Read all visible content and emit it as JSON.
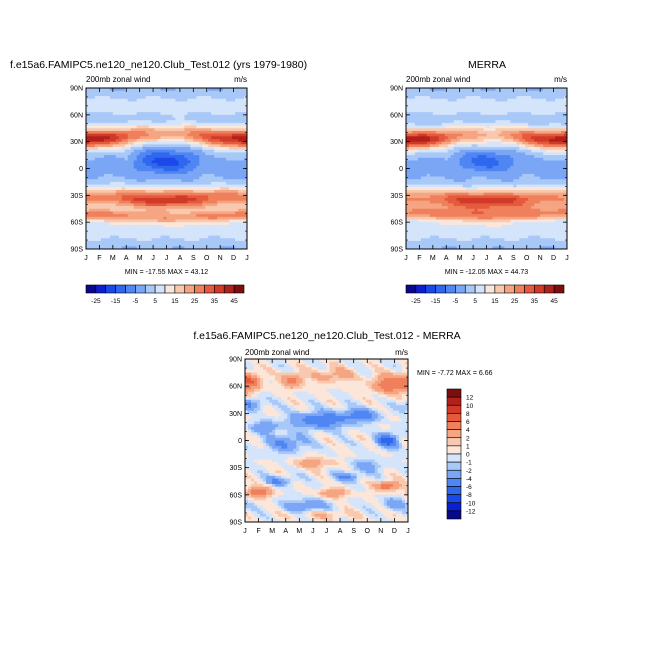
{
  "chart_data": [
    {
      "type": "heatmap",
      "title": "f.e15a6.FAMIPC5.ne120_ne120.Club_Test.012 (yrs 1979-1980)",
      "left_label": "200mb zonal wind",
      "right_label": "m/s",
      "x_ticks": [
        "J",
        "F",
        "M",
        "A",
        "M",
        "J",
        "J",
        "A",
        "S",
        "O",
        "N",
        "D",
        "J"
      ],
      "y_ticks": [
        "90N",
        "60N",
        "30N",
        "0",
        "30S",
        "60S",
        "90S"
      ],
      "ylim": [
        -90,
        90
      ],
      "stats": "MIN = -17.55 MAX =  43.12",
      "colorbar": {
        "orientation": "horizontal",
        "labels": [
          "-25",
          "-15",
          "-5",
          "5",
          "15",
          "25",
          "35",
          "45"
        ],
        "levels": [
          -25,
          -20,
          -15,
          -10,
          -5,
          0,
          5,
          10,
          15,
          20,
          25,
          30,
          35,
          40,
          45
        ],
        "colors": [
          "#08088a",
          "#0b1fd0",
          "#1a49e8",
          "#2f68ef",
          "#4f86f3",
          "#7aa6f5",
          "#a8c8f8",
          "#d4e4fb",
          "#fbe6d9",
          "#f8c9ae",
          "#f5a582",
          "#f0805c",
          "#e55a3c",
          "#d13a28",
          "#b2201a",
          "#7e0e0e"
        ]
      },
      "field": {
        "jets": [
          {
            "lat": 33,
            "peak_djf": 43,
            "peak_jja": 22,
            "width_deg": 11
          },
          {
            "lat": -32,
            "peak_djf": 26,
            "peak_jja": 38,
            "width_deg": 12
          },
          {
            "lat": -52,
            "peak_djf": 26,
            "peak_jja": 20,
            "width_deg": 7
          }
        ],
        "summer_easterly": {
          "lat": 8,
          "min": -17,
          "width_deg": 13
        }
      }
    },
    {
      "type": "heatmap",
      "title": "MERRA",
      "left_label": "200mb zonal wind",
      "right_label": "m/s",
      "x_ticks": [
        "J",
        "F",
        "M",
        "A",
        "M",
        "J",
        "J",
        "A",
        "S",
        "O",
        "N",
        "D",
        "J"
      ],
      "y_ticks": [
        "90N",
        "60N",
        "30N",
        "0",
        "30S",
        "60S",
        "90S"
      ],
      "ylim": [
        -90,
        90
      ],
      "stats": "MIN = -12.05 MAX =  44.73",
      "colorbar": {
        "orientation": "horizontal",
        "labels": [
          "-25",
          "-15",
          "-5",
          "5",
          "15",
          "25",
          "35",
          "45"
        ],
        "levels": [
          -25,
          -20,
          -15,
          -10,
          -5,
          0,
          5,
          10,
          15,
          20,
          25,
          30,
          35,
          40,
          45
        ],
        "colors": [
          "#08088a",
          "#0b1fd0",
          "#1a49e8",
          "#2f68ef",
          "#4f86f3",
          "#7aa6f5",
          "#a8c8f8",
          "#d4e4fb",
          "#fbe6d9",
          "#f8c9ae",
          "#f5a582",
          "#f0805c",
          "#e55a3c",
          "#d13a28",
          "#b2201a",
          "#7e0e0e"
        ]
      },
      "field": {
        "jets": [
          {
            "lat": 32,
            "peak_djf": 44,
            "peak_jja": 20,
            "width_deg": 11
          },
          {
            "lat": -33,
            "peak_djf": 24,
            "peak_jja": 38,
            "width_deg": 12
          },
          {
            "lat": -50,
            "peak_djf": 22,
            "peak_jja": 22,
            "width_deg": 8
          }
        ],
        "summer_easterly": {
          "lat": 8,
          "min": -12,
          "width_deg": 12
        }
      }
    },
    {
      "type": "heatmap",
      "title": "f.e15a6.FAMIPC5.ne120_ne120.Club_Test.012 - MERRA",
      "left_label": "200mb zonal wind",
      "right_label": "m/s",
      "x_ticks": [
        "J",
        "F",
        "M",
        "A",
        "M",
        "J",
        "J",
        "A",
        "S",
        "O",
        "N",
        "D",
        "J"
      ],
      "y_ticks": [
        "90N",
        "60N",
        "30N",
        "0",
        "30S",
        "60S",
        "90S"
      ],
      "ylim": [
        -90,
        90
      ],
      "stats": "MIN =  -7.72 MAX =   6.66",
      "colorbar": {
        "orientation": "vertical",
        "labels": [
          "12",
          "10",
          "8",
          "6",
          "4",
          "2",
          "1",
          "0",
          "-1",
          "-2",
          "-4",
          "-6",
          "-8",
          "-10",
          "-12"
        ],
        "levels": [
          -12,
          -10,
          -8,
          -6,
          -4,
          -2,
          -1,
          0,
          1,
          2,
          4,
          6,
          8,
          10,
          12
        ],
        "colors": [
          "#08088a",
          "#0b1fd0",
          "#1a49e8",
          "#2f68ef",
          "#4f86f3",
          "#7aa6f5",
          "#a8c8f8",
          "#d4e4fb",
          "#fbe6d9",
          "#f8c9ae",
          "#f5a582",
          "#f0805c",
          "#e55a3c",
          "#d13a28",
          "#b2201a",
          "#7e0e0e"
        ]
      },
      "field": {
        "anomalies": [
          {
            "t": 0.3,
            "lat": 65,
            "amp": 6,
            "st": 0.9,
            "sl": 10
          },
          {
            "t": 3.5,
            "lat": 66,
            "amp": 5,
            "st": 0.8,
            "sl": 8
          },
          {
            "t": 10.5,
            "lat": 62,
            "amp": 6,
            "st": 1.1,
            "sl": 10
          },
          {
            "t": 6.5,
            "lat": 72,
            "amp": 3,
            "st": 1.5,
            "sl": 8
          },
          {
            "t": 5.5,
            "lat": 22,
            "amp": -6,
            "st": 2.0,
            "sl": 9
          },
          {
            "t": 8.5,
            "lat": 28,
            "amp": -5,
            "st": 1.4,
            "sl": 7
          },
          {
            "t": 1.5,
            "lat": 15,
            "amp": -4,
            "st": 1.0,
            "sl": 6
          },
          {
            "t": 10.5,
            "lat": 0,
            "amp": -7,
            "st": 0.8,
            "sl": 8
          },
          {
            "t": 3.0,
            "lat": -3,
            "amp": -4,
            "st": 1.5,
            "sl": 10
          },
          {
            "t": 9.0,
            "lat": -28,
            "amp": -3,
            "st": 1.2,
            "sl": 7
          },
          {
            "t": 5.0,
            "lat": -25,
            "amp": 3,
            "st": 1.5,
            "sl": 6
          },
          {
            "t": 1.0,
            "lat": -57,
            "amp": 6,
            "st": 0.9,
            "sl": 6
          },
          {
            "t": 10.5,
            "lat": -50,
            "amp": 6,
            "st": 0.9,
            "sl": 5
          },
          {
            "t": 6.5,
            "lat": -58,
            "amp": 4,
            "st": 1.1,
            "sl": 5
          },
          {
            "t": 2.5,
            "lat": -45,
            "amp": -4,
            "st": 1.0,
            "sl": 5
          },
          {
            "t": 7.5,
            "lat": -40,
            "amp": -4,
            "st": 1.0,
            "sl": 5
          },
          {
            "t": 4.5,
            "lat": -72,
            "amp": -4,
            "st": 1.5,
            "sl": 7
          },
          {
            "t": 11.0,
            "lat": -70,
            "amp": -3,
            "st": 1.0,
            "sl": 7
          },
          {
            "t": 0.5,
            "lat": 40,
            "amp": -4,
            "st": 0.9,
            "sl": 6
          },
          {
            "t": 6.0,
            "lat": -82,
            "amp": 2,
            "st": 2.0,
            "sl": 5
          }
        ]
      }
    }
  ]
}
